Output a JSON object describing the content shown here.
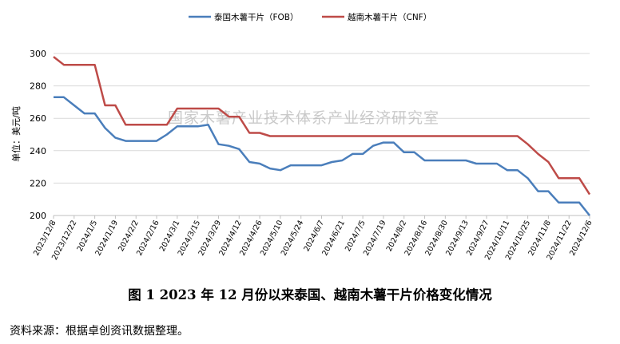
{
  "caption": "图 1   2023 年 12 月份以来泰国、越南木薯干片价格变化情况",
  "source": "资料来源：根据卓创资讯数据整理。",
  "watermark": "国家木薯产业技术体系产业经济研究室",
  "chart_data": {
    "type": "line",
    "title": "",
    "xlabel": "",
    "ylabel": "单位：美元/吨",
    "ylim": [
      200,
      300
    ],
    "yticks": [
      200,
      220,
      240,
      260,
      280,
      300
    ],
    "grid": true,
    "legend_position": "top",
    "x": [
      "2023/12/8",
      "2023/12/15",
      "2023/12/22",
      "2023/12/29",
      "2024/1/5",
      "2024/1/12",
      "2024/1/19",
      "2024/1/26",
      "2024/2/2",
      "2024/2/9",
      "2024/2/16",
      "2024/2/23",
      "2024/3/1",
      "2024/3/8",
      "2024/3/15",
      "2024/3/22",
      "2024/3/29",
      "2024/4/5",
      "2024/4/12",
      "2024/4/19",
      "2024/4/26",
      "2024/5/3",
      "2024/5/10",
      "2024/5/17",
      "2024/5/24",
      "2024/5/31",
      "2024/6/7",
      "2024/6/14",
      "2024/6/21",
      "2024/6/28",
      "2024/7/5",
      "2024/7/12",
      "2024/7/19",
      "2024/7/26",
      "2024/8/2",
      "2024/8/9",
      "2024/8/16",
      "2024/8/23",
      "2024/8/30",
      "2024/9/6",
      "2024/9/13",
      "2024/9/20",
      "2024/9/27",
      "2024/10/4",
      "2024/10/11",
      "2024/10/18",
      "2024/10/25",
      "2024/11/1",
      "2024/11/8",
      "2024/11/15",
      "2024/11/22",
      "2024/11/29",
      "2024/12/6"
    ],
    "xticklabels": [
      "2023/12/8",
      "2023/12/22",
      "2024/1/5",
      "2024/1/19",
      "2024/2/2",
      "2024/2/16",
      "2024/3/1",
      "2024/3/15",
      "2024/3/29",
      "2024/4/12",
      "2024/4/26",
      "2024/5/10",
      "2024/5/24",
      "2024/6/7",
      "2024/6/21",
      "2024/7/5",
      "2024/7/19",
      "2024/8/2",
      "2024/8/16",
      "2024/8/30",
      "2024/9/13",
      "2024/9/27",
      "2024/10/11",
      "2024/10/25",
      "2024/11/8",
      "2024/11/22",
      "2024/12/6"
    ],
    "series": [
      {
        "name": "泰国木薯干片（FOB）",
        "color": "#4a7ebb",
        "values": [
          273,
          273,
          268,
          263,
          263,
          254,
          248,
          246,
          246,
          246,
          246,
          250,
          255,
          255,
          255,
          256,
          244,
          243,
          241,
          233,
          232,
          229,
          228,
          231,
          231,
          231,
          231,
          233,
          234,
          238,
          238,
          243,
          245,
          245,
          239,
          239,
          234,
          234,
          234,
          234,
          234,
          232,
          232,
          232,
          228,
          228,
          223,
          215,
          215,
          208,
          208,
          208,
          200
        ]
      },
      {
        "name": "越南木薯干片（CNF）",
        "color": "#be4b48",
        "values": [
          298,
          293,
          293,
          293,
          293,
          268,
          268,
          256,
          256,
          256,
          256,
          256,
          266,
          266,
          266,
          266,
          266,
          261,
          261,
          251,
          251,
          249,
          249,
          249,
          249,
          249,
          249,
          249,
          249,
          249,
          249,
          249,
          249,
          249,
          249,
          249,
          249,
          249,
          249,
          249,
          249,
          249,
          249,
          249,
          249,
          249,
          244,
          238,
          233,
          223,
          223,
          223,
          213
        ]
      }
    ]
  }
}
